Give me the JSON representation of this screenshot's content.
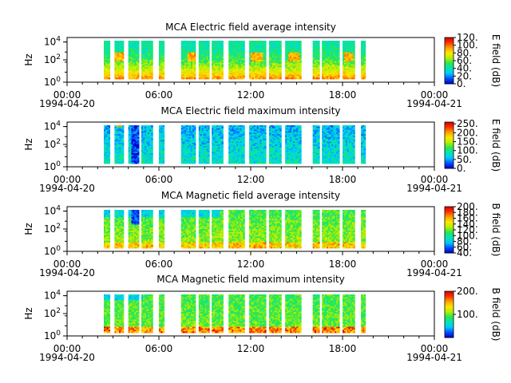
{
  "colors": {
    "axis": "#000000",
    "background": "#ffffff",
    "colormap": [
      "#0000c8",
      "#0050ff",
      "#00c8ff",
      "#00e6b4",
      "#28e650",
      "#b4f000",
      "#ffe600",
      "#ffa000",
      "#ff3200",
      "#d20000"
    ]
  },
  "chart_data": [
    {
      "type": "heatmap",
      "title": "MCA  Electric field average intensity",
      "ylabel": "Hz",
      "colorbar_label": "E field (dB)",
      "colorbar_ticks": [
        "0.",
        "20.",
        "40.",
        "60.",
        "80.",
        "100.",
        "120."
      ],
      "colorbar_range": [
        0,
        120
      ],
      "y_ticks": [
        "10^0",
        "10^2",
        "10^4"
      ]
    },
    {
      "type": "heatmap",
      "title": "MCA  Electric field maximum intensity",
      "ylabel": "Hz",
      "colorbar_label": "E field (dB)",
      "colorbar_ticks": [
        "0.",
        "50.",
        "100.",
        "150.",
        "200.",
        "250."
      ],
      "colorbar_range": [
        0,
        260
      ],
      "y_ticks": [
        "10^0",
        "10^2",
        "10^4"
      ]
    },
    {
      "type": "heatmap",
      "title": "MCA  Magnetic field average intensity",
      "ylabel": "Hz",
      "colorbar_label": "B field (dB)",
      "colorbar_ticks": [
        "40.",
        "60.",
        "80.",
        "100.",
        "120.",
        "140.",
        "160.",
        "180.",
        "200."
      ],
      "colorbar_range": [
        40,
        200
      ],
      "y_ticks": [
        "10^0",
        "10^2",
        "10^4"
      ]
    },
    {
      "type": "heatmap",
      "title": "MCA  Magnetic field maximum intensity",
      "ylabel": "Hz",
      "colorbar_label": "B field (dB)",
      "colorbar_ticks": [
        "100.",
        "200."
      ],
      "colorbar_range": [
        0,
        200
      ],
      "y_ticks": [
        "10^0",
        "10^2",
        "10^4"
      ]
    }
  ],
  "x_axis": {
    "ticks": [
      {
        "time": "00:00",
        "date": "1994-04-20"
      },
      {
        "time": "06:00",
        "date": ""
      },
      {
        "time": "12:00",
        "date": ""
      },
      {
        "time": "18:00",
        "date": ""
      },
      {
        "time": "00:00",
        "date": "1994-04-21"
      }
    ],
    "range_hours": [
      0,
      24
    ]
  },
  "data_segments_hours": [
    [
      2.4,
      2.8
    ],
    [
      3.1,
      3.7
    ],
    [
      4.0,
      4.7
    ],
    [
      4.85,
      5.6
    ],
    [
      6.0,
      6.35
    ],
    [
      7.45,
      8.4
    ],
    [
      8.6,
      9.3
    ],
    [
      9.45,
      10.2
    ],
    [
      10.55,
      11.6
    ],
    [
      11.9,
      13.0
    ],
    [
      13.2,
      14.0
    ],
    [
      14.25,
      15.3
    ],
    [
      16.05,
      16.5
    ],
    [
      16.65,
      17.8
    ],
    [
      18.0,
      18.8
    ],
    [
      19.2,
      19.5
    ]
  ]
}
